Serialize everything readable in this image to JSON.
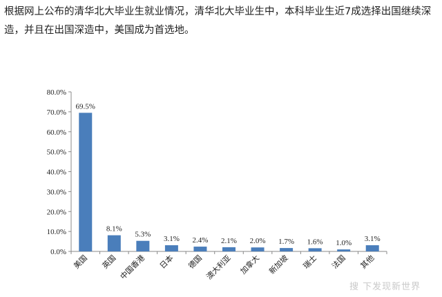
{
  "intro_text": "根据网上公布的清华北大毕业生就业情况，清华北大毕业生中，本科毕业生近7成选择出国继续深造，并且在出国深造中，美国成为首选地。",
  "watermark": "搜 下发现新世界",
  "colors": {
    "bar": "#4a7ebb",
    "axis": "#888888",
    "text": "#222222"
  },
  "chart_data": {
    "type": "bar",
    "title": "",
    "xlabel": "",
    "ylabel": "",
    "ylim": [
      0,
      80
    ],
    "y_ticks": [
      "0.0%",
      "10.0%",
      "20.0%",
      "30.0%",
      "40.0%",
      "50.0%",
      "60.0%",
      "70.0%",
      "80.0%"
    ],
    "categories": [
      "美国",
      "英国",
      "中国香港",
      "日本",
      "德国",
      "澳大利亚",
      "加拿大",
      "新加坡",
      "瑞士",
      "法国",
      "其他"
    ],
    "values": [
      69.5,
      8.1,
      5.3,
      3.1,
      2.4,
      2.1,
      2.0,
      1.7,
      1.6,
      1.0,
      3.1
    ],
    "data_labels": [
      "69.5%",
      "8.1%",
      "5.3%",
      "3.1%",
      "2.4%",
      "2.1%",
      "2.0%",
      "1.7%",
      "1.6%",
      "1.0%",
      "3.1%"
    ],
    "grid": false,
    "legend": "none"
  }
}
